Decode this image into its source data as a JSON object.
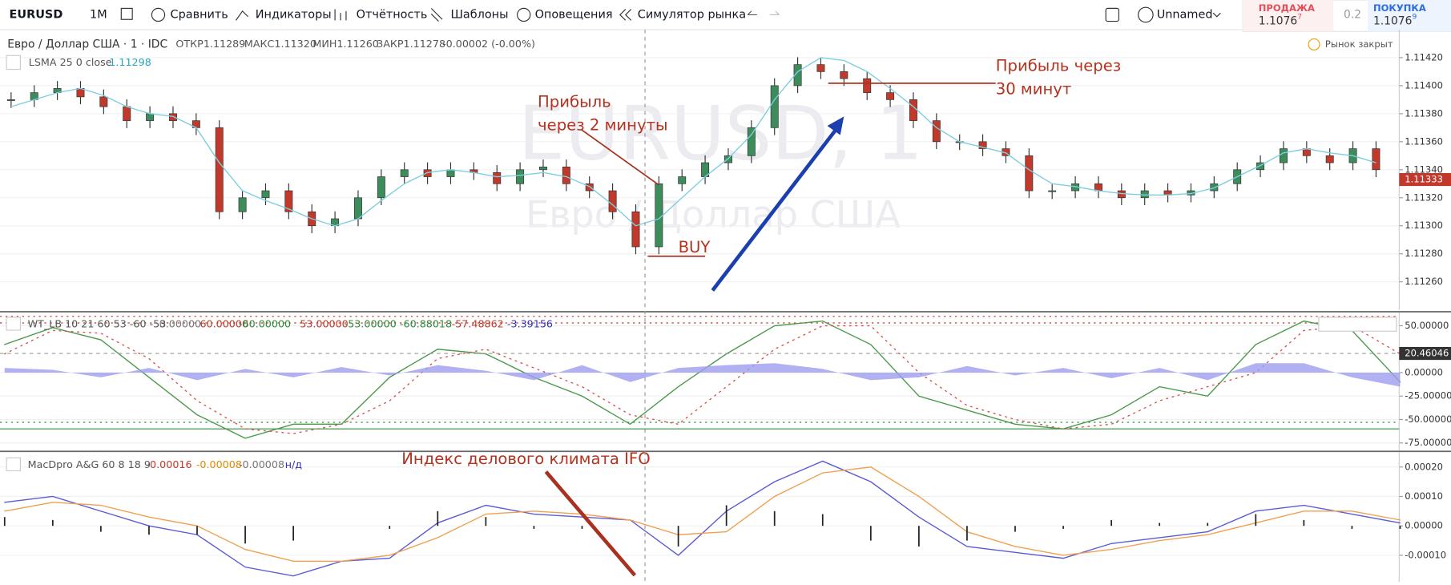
{
  "toolbar": {
    "symbol": "EURUSD",
    "interval": "1М",
    "compare": "Сравнить",
    "indicators": "Индикаторы",
    "reports": "Отчётность",
    "templates": "Шаблоны",
    "alerts": "Оповещения",
    "replay": "Симулятор рынка",
    "layout": "Unnamed"
  },
  "quote": {
    "sell_label": "ПРОДАЖА",
    "sell_price": "1.1076",
    "sell_pip": "7",
    "spread": "0.2",
    "buy_label": "ПОКУПКА",
    "buy_price": "1.1076",
    "buy_pip": "9"
  },
  "header": {
    "title": "Евро / Доллар США · 1 · IDC",
    "open": "ОТКР1.11289",
    "high": "МАКС1.11320",
    "low": "МИН1.11260",
    "close": "ЗАКР1.11278",
    "change": "-0.00002 (-0.00%)",
    "lsma_label": "LSMA 25 0 close",
    "lsma_value": "1.11298",
    "market_status": "Рынок закрыт",
    "watermark_symbol": "EURUSD, 1",
    "watermark_name": "Евро / Доллар США"
  },
  "annotations": {
    "profit2_line1": "Прибыль",
    "profit2_line2": "через 2 минуты",
    "buy": "BUY",
    "profit30_line1": "Прибыль через",
    "profit30_line2": "30 минут",
    "ifo": "Индекс делового климата IFO"
  },
  "chart_data": [
    {
      "type": "candlestick",
      "name": "EURUSD",
      "ylim": [
        1.1124,
        1.1144
      ],
      "yticks": [
        {
          "value": 1.1142,
          "label": "1.11420"
        },
        {
          "value": 1.114,
          "label": "1.11400"
        },
        {
          "value": 1.1138,
          "label": "1.11380"
        },
        {
          "value": 1.1136,
          "label": "1.11360"
        },
        {
          "value": 1.1134,
          "label": "1.11340"
        },
        {
          "value": 1.1132,
          "label": "1.11320"
        },
        {
          "value": 1.113,
          "label": "1.11300"
        },
        {
          "value": 1.1128,
          "label": "1.11280"
        },
        {
          "value": 1.1126,
          "label": "1.11260"
        }
      ],
      "last_price": {
        "value": 1.11333,
        "label": "1.11333"
      },
      "closes": [
        1.1139,
        1.11395,
        1.11398,
        1.11392,
        1.11385,
        1.11375,
        1.1138,
        1.11375,
        1.1137,
        1.1131,
        1.1132,
        1.11325,
        1.1131,
        1.113,
        1.11305,
        1.1132,
        1.11335,
        1.1134,
        1.11335,
        1.1134,
        1.11338,
        1.1133,
        1.1134,
        1.11342,
        1.1133,
        1.11325,
        1.1131,
        1.11285,
        1.1133,
        1.11335,
        1.11345,
        1.1135,
        1.1137,
        1.114,
        1.11415,
        1.1141,
        1.11405,
        1.11395,
        1.1139,
        1.11375,
        1.1136,
        1.1136,
        1.11355,
        1.1135,
        1.11325,
        1.11325,
        1.1133,
        1.11325,
        1.1132,
        1.11325,
        1.11322,
        1.11325,
        1.1133,
        1.1134,
        1.11345,
        1.11355,
        1.1135,
        1.11345,
        1.11355,
        1.1134
      ],
      "lsma": [
        1.11385,
        1.1139,
        1.11395,
        1.11398,
        1.11393,
        1.11385,
        1.1138,
        1.11378,
        1.1137,
        1.11345,
        1.11325,
        1.11318,
        1.11312,
        1.11305,
        1.113,
        1.11305,
        1.11318,
        1.1133,
        1.11338,
        1.1134,
        1.11338,
        1.11335,
        1.11336,
        1.11338,
        1.11335,
        1.11328,
        1.11315,
        1.113,
        1.11305,
        1.1132,
        1.11335,
        1.11348,
        1.11365,
        1.1139,
        1.1141,
        1.1142,
        1.11418,
        1.1141,
        1.11398,
        1.11385,
        1.1137,
        1.1136,
        1.11356,
        1.11352,
        1.1134,
        1.1133,
        1.11328,
        1.11325,
        1.11323,
        1.11322,
        1.11322,
        1.11323,
        1.11327,
        1.11335,
        1.11343,
        1.11352,
        1.11355,
        1.11352,
        1.1135,
        1.11345
      ],
      "up_color": "#3d8c5c",
      "down_color": "#c0392b",
      "lsma_color": "#7ccfe0"
    },
    {
      "type": "line",
      "name": "WT_LB 10 21 60 53 -60 -53",
      "ylim": [
        -83,
        64
      ],
      "yticks": [
        {
          "value": 50,
          "label": "50.00000"
        },
        {
          "value": 0,
          "label": "0.00000"
        },
        {
          "value": -25,
          "label": "-25.00000"
        },
        {
          "value": -50,
          "label": "-50.00000"
        },
        {
          "value": -75,
          "label": "-75.00000"
        }
      ],
      "legend_values": [
        {
          "text": "0.00000",
          "color": "#777"
        },
        {
          "text": "60.00000",
          "color": "#c0392b"
        },
        {
          "text": "-60.00000",
          "color": "#2e8b3a"
        },
        {
          "text": "53.00000",
          "color": "#c0392b"
        },
        {
          "text": "-53.00000",
          "color": "#2e8b3a"
        },
        {
          "text": "-60.88018",
          "color": "#2e8b3a"
        },
        {
          "text": "-57.48862",
          "color": "#c0392b"
        },
        {
          "text": "-3.39156",
          "color": "#3030c0"
        }
      ],
      "cursor_value": {
        "value": 20.46046,
        "label": "20.46046"
      },
      "levels": [
        {
          "value": 60,
          "color": "#c0392b",
          "dash": true
        },
        {
          "value": 53,
          "color": "#c0392b",
          "dash": true
        },
        {
          "value": -53,
          "color": "#2e8b3a",
          "dash": true
        },
        {
          "value": -60,
          "color": "#2e8b3a",
          "dash": false
        }
      ],
      "series": [
        {
          "name": "wt1",
          "color": "#4a9a4a",
          "style": "solid",
          "values": [
            30,
            48,
            35,
            -5,
            -45,
            -70,
            -55,
            -55,
            -5,
            25,
            20,
            -5,
            -25,
            -55,
            -15,
            20,
            50,
            55,
            30,
            -25,
            -40,
            -55,
            -60,
            -45,
            -15,
            -25,
            30,
            55,
            45,
            -10
          ]
        },
        {
          "name": "wt2",
          "color": "#d9534f",
          "style": "dots",
          "values": [
            20,
            45,
            42,
            15,
            -30,
            -60,
            -65,
            -55,
            -30,
            15,
            25,
            5,
            -15,
            -45,
            -55,
            -15,
            25,
            50,
            50,
            0,
            -35,
            -50,
            -60,
            -55,
            -30,
            -15,
            0,
            45,
            50,
            20
          ]
        },
        {
          "name": "hist",
          "color": "#9c9cf0",
          "style": "area",
          "values": [
            5,
            3,
            -5,
            5,
            -8,
            4,
            -5,
            6,
            -3,
            8,
            2,
            -8,
            8,
            -10,
            5,
            8,
            10,
            4,
            -8,
            -5,
            7,
            -3,
            5,
            -6,
            5,
            -8,
            10,
            10,
            -5,
            -15
          ]
        }
      ]
    },
    {
      "type": "line",
      "name": "MacDpro A&G 60 8 18 9",
      "ylim": [
        -0.00019,
        0.00025
      ],
      "yticks": [
        {
          "value": 0.0002,
          "label": "0.00020"
        },
        {
          "value": 0.0001,
          "label": "0.00010"
        },
        {
          "value": 0,
          "label": "0.00000"
        },
        {
          "value": -0.0001,
          "label": "-0.00010"
        }
      ],
      "legend_values": [
        {
          "text": "-0.00016",
          "color": "#c0392b"
        },
        {
          "text": "-0.00008",
          "color": "#e08a00"
        },
        {
          "text": "-0.00008",
          "color": "#777"
        },
        {
          "text": "н/д",
          "color": "#3030c0"
        }
      ],
      "series": [
        {
          "name": "macd",
          "color": "#5b5bd6",
          "style": "solid",
          "values": [
            8e-05,
            0.0001,
            5e-05,
            0,
            -3e-05,
            -0.00014,
            -0.00017,
            -0.00012,
            -0.00011,
            1e-05,
            7e-05,
            4e-05,
            3e-05,
            2e-05,
            -0.0001,
            5e-05,
            0.00015,
            0.00022,
            0.00015,
            3e-05,
            -7e-05,
            -9e-05,
            -0.00011,
            -6e-05,
            -4e-05,
            -2e-05,
            5e-05,
            7e-05,
            4e-05,
            1e-05
          ]
        },
        {
          "name": "signal",
          "color": "#f0a050",
          "style": "solid",
          "values": [
            5e-05,
            8e-05,
            7e-05,
            3e-05,
            0,
            -8e-05,
            -0.00012,
            -0.00012,
            -0.0001,
            -4e-05,
            4e-05,
            5e-05,
            4e-05,
            2e-05,
            -3e-05,
            -2e-05,
            0.0001,
            0.00018,
            0.0002,
            0.0001,
            -2e-05,
            -7e-05,
            -0.0001,
            -8e-05,
            -5e-05,
            -3e-05,
            1e-05,
            5e-05,
            5e-05,
            2e-05
          ]
        },
        {
          "name": "histogram",
          "color": "#222",
          "style": "bars",
          "values": [
            3e-05,
            2e-05,
            -2e-05,
            -3e-05,
            -3e-05,
            -6e-05,
            -5e-05,
            0,
            -1e-05,
            5e-05,
            3e-05,
            -1e-05,
            -1e-05,
            0,
            -7e-05,
            7e-05,
            5e-05,
            4e-05,
            -5e-05,
            -7e-05,
            -5e-05,
            -2e-05,
            -1e-05,
            2e-05,
            1e-05,
            1e-05,
            4e-05,
            2e-05,
            -1e-05,
            -1e-05
          ]
        }
      ]
    }
  ]
}
